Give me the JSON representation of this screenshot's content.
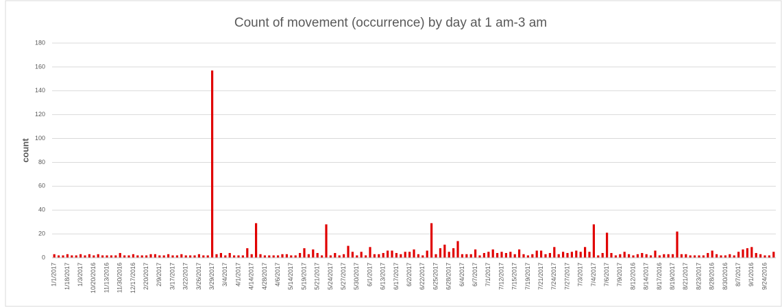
{
  "chart_data": {
    "type": "bar",
    "title": "Count of movement (occurrence) by day at 1 am-3 am",
    "y_label": "count",
    "color": "#e00000",
    "grid": true,
    "ylim": [
      0,
      180
    ],
    "yticks": [
      0,
      20,
      40,
      60,
      80,
      100,
      120,
      140,
      160,
      180
    ],
    "categories": [
      "1/1/2017",
      null,
      null,
      "1/18/2017",
      null,
      null,
      "1/3/2017",
      null,
      null,
      "10/20/2016",
      null,
      null,
      "11/13/2016",
      null,
      null,
      "11/30/2016",
      null,
      null,
      "12/17/2016",
      null,
      null,
      "2/20/2017",
      null,
      null,
      "2/9/2017",
      null,
      null,
      "3/17/2017",
      null,
      null,
      "3/22/2017",
      null,
      null,
      "3/26/2017",
      null,
      null,
      "3/29/2017",
      null,
      null,
      "3/4/2017",
      null,
      null,
      "4/1/2017",
      null,
      null,
      "4/14/2017",
      null,
      null,
      "4/28/2017",
      null,
      null,
      "4/6/2017",
      null,
      null,
      "5/14/2017",
      null,
      null,
      "5/19/2017",
      null,
      null,
      "5/21/2017",
      null,
      null,
      "5/24/2017",
      null,
      null,
      "5/27/2017",
      null,
      null,
      "5/30/2017",
      null,
      null,
      "6/1/2017",
      null,
      null,
      "6/13/2017",
      null,
      null,
      "6/17/2017",
      null,
      null,
      "6/2/2017",
      null,
      null,
      "6/22/2017",
      null,
      null,
      "6/25/2017",
      null,
      null,
      "6/28/2017",
      null,
      null,
      "6/4/2017",
      null,
      null,
      "6/7/2017",
      null,
      null,
      "7/1/2017",
      null,
      null,
      "7/12/2017",
      null,
      null,
      "7/15/2017",
      null,
      null,
      "7/19/2017",
      null,
      null,
      "7/21/2017",
      null,
      null,
      "7/24/2017",
      null,
      null,
      "7/27/2017",
      null,
      null,
      "7/3/2017",
      null,
      null,
      "7/4/2017",
      null,
      null,
      "7/6/2017",
      null,
      null,
      "7/9/2017",
      null,
      null,
      "8/12/2016",
      null,
      null,
      "8/14/2017",
      null,
      null,
      "8/17/2016",
      null,
      null,
      "8/19/2017",
      null,
      null,
      "8/21/2017",
      null,
      null,
      "8/23/2017",
      null,
      null,
      "8/28/2016",
      null,
      null,
      "8/30/2016",
      null,
      null,
      "8/7/2017",
      null,
      null,
      "9/1/2016",
      null,
      null,
      "9/24/2016",
      null,
      null
    ],
    "values": [
      3,
      2,
      2,
      3,
      2,
      2,
      3,
      2,
      3,
      2,
      3,
      2,
      2,
      2,
      2,
      4,
      2,
      2,
      3,
      2,
      2,
      2,
      3,
      3,
      2,
      2,
      3,
      2,
      2,
      3,
      2,
      2,
      2,
      3,
      2,
      2,
      157,
      3,
      4,
      2,
      4,
      2,
      2,
      2,
      8,
      3,
      29,
      3,
      2,
      2,
      2,
      2,
      3,
      3,
      2,
      2,
      4,
      8,
      3,
      7,
      4,
      2,
      28,
      2,
      4,
      2,
      3,
      10,
      5,
      2,
      5,
      2,
      9,
      3,
      3,
      4,
      6,
      6,
      4,
      3,
      5,
      5,
      7,
      3,
      2,
      6,
      29,
      3,
      8,
      11,
      5,
      8,
      14,
      3,
      3,
      3,
      7,
      2,
      4,
      5,
      7,
      4,
      5,
      4,
      5,
      3,
      7,
      3,
      2,
      3,
      6,
      6,
      3,
      4,
      9,
      3,
      5,
      4,
      5,
      6,
      5,
      9,
      5,
      28,
      2,
      4,
      21,
      4,
      2,
      3,
      5,
      3,
      2,
      3,
      4,
      3,
      2,
      6,
      2,
      3,
      3,
      3,
      22,
      3,
      3,
      2,
      2,
      2,
      2,
      4,
      6,
      3,
      2,
      2,
      3,
      2,
      5,
      7,
      8,
      9,
      4,
      3,
      2,
      2,
      5
    ]
  }
}
